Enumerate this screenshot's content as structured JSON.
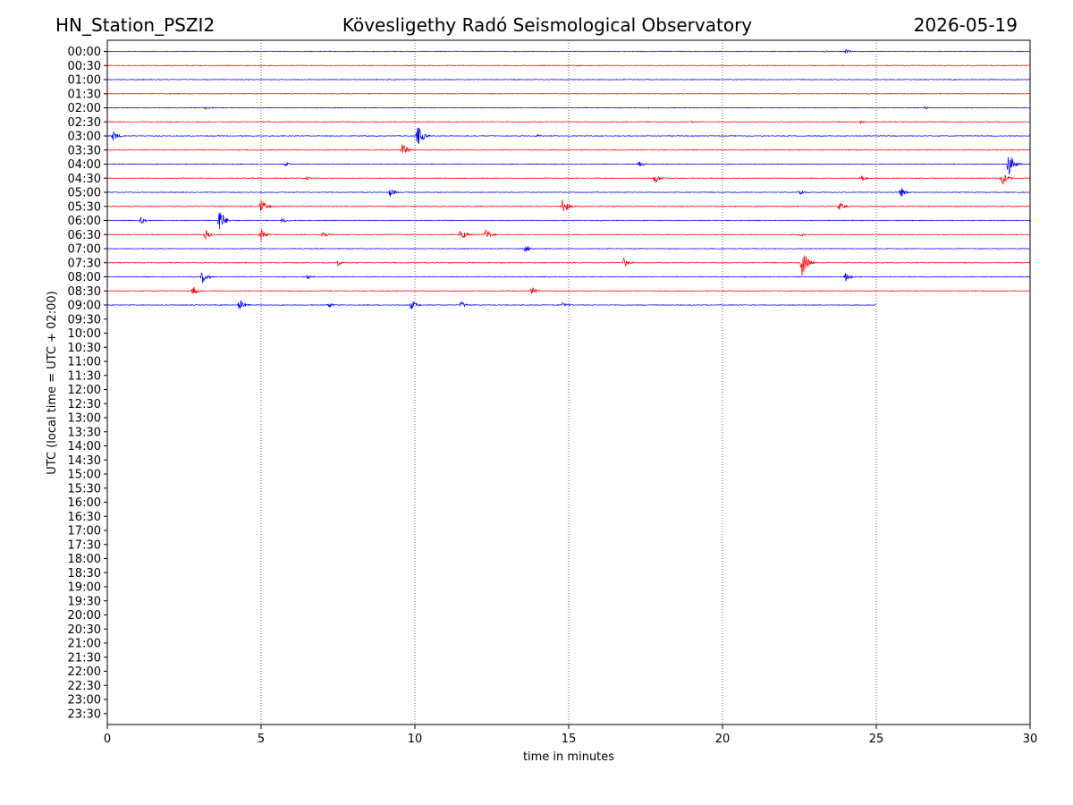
{
  "chart_data": {
    "type": "line",
    "title_left": "HN_Station_PSZI2",
    "title_center": "Kövesligethy Radó Seismological Observatory",
    "title_right": "2026-05-19",
    "xlabel": "time in minutes",
    "ylabel": "UTC (local time = UTC + 02:00)",
    "xlim": [
      0,
      30
    ],
    "x_ticks": [
      0,
      5,
      10,
      15,
      20,
      25,
      30
    ],
    "x_tick_labels": [
      "0",
      "5",
      "10",
      "15",
      "20",
      "25",
      "30"
    ],
    "vertical_gridlines": [
      5,
      10,
      15,
      20,
      25
    ],
    "row_labels": [
      "00:00",
      "00:30",
      "01:00",
      "01:30",
      "02:00",
      "02:30",
      "03:00",
      "03:30",
      "04:00",
      "04:30",
      "05:00",
      "05:30",
      "06:00",
      "06:30",
      "07:00",
      "07:30",
      "08:00",
      "08:30",
      "09:00",
      "09:30",
      "10:00",
      "10:30",
      "11:00",
      "11:30",
      "12:00",
      "12:30",
      "13:00",
      "13:30",
      "14:00",
      "14:30",
      "15:00",
      "15:30",
      "16:00",
      "16:30",
      "17:00",
      "17:30",
      "18:00",
      "18:30",
      "19:00",
      "19:30",
      "20:00",
      "20:30",
      "21:00",
      "21:30",
      "22:00",
      "22:30",
      "23:00",
      "23:30"
    ],
    "colors": {
      "even_rows": "#0000ff",
      "odd_rows": "#ff0000",
      "grid": "#000000"
    },
    "traces": [
      {
        "label": "00:00",
        "end_minute": 30,
        "events": [
          {
            "t": 24.0,
            "amp": 0.2
          },
          {
            "t": 23.3,
            "amp": 0.1
          }
        ]
      },
      {
        "label": "00:30",
        "end_minute": 30,
        "events": [
          {
            "t": 15.3,
            "amp": 0.08
          }
        ]
      },
      {
        "label": "01:00",
        "end_minute": 30,
        "events": []
      },
      {
        "label": "01:30",
        "end_minute": 30,
        "events": []
      },
      {
        "label": "02:00",
        "end_minute": 30,
        "events": [
          {
            "t": 3.2,
            "amp": 0.15
          },
          {
            "t": 26.6,
            "amp": 0.12
          }
        ]
      },
      {
        "label": "02:30",
        "end_minute": 30,
        "events": [
          {
            "t": 24.5,
            "amp": 0.15
          },
          {
            "t": 19.0,
            "amp": 0.08
          }
        ]
      },
      {
        "label": "03:00",
        "end_minute": 30,
        "events": [
          {
            "t": 0.2,
            "amp": 0.4
          },
          {
            "t": 10.1,
            "amp": 0.9
          },
          {
            "t": 14.0,
            "amp": 0.1
          }
        ]
      },
      {
        "label": "03:30",
        "end_minute": 30,
        "events": [
          {
            "t": 9.6,
            "amp": 0.55
          }
        ]
      },
      {
        "label": "04:00",
        "end_minute": 30,
        "events": [
          {
            "t": 5.8,
            "amp": 0.15
          },
          {
            "t": 17.3,
            "amp": 0.25
          },
          {
            "t": 29.3,
            "amp": 1.0
          }
        ]
      },
      {
        "label": "04:30",
        "end_minute": 30,
        "events": [
          {
            "t": 6.5,
            "amp": 0.15
          },
          {
            "t": 17.8,
            "amp": 0.45
          },
          {
            "t": 24.5,
            "amp": 0.3
          },
          {
            "t": 29.1,
            "amp": 0.6
          }
        ]
      },
      {
        "label": "05:00",
        "end_minute": 30,
        "events": [
          {
            "t": 9.2,
            "amp": 0.35
          },
          {
            "t": 22.5,
            "amp": 0.3
          },
          {
            "t": 25.8,
            "amp": 0.4
          }
        ]
      },
      {
        "label": "05:30",
        "end_minute": 30,
        "events": [
          {
            "t": 5.0,
            "amp": 0.6
          },
          {
            "t": 14.8,
            "amp": 0.7
          },
          {
            "t": 23.8,
            "amp": 0.35
          }
        ]
      },
      {
        "label": "06:00",
        "end_minute": 30,
        "events": [
          {
            "t": 1.1,
            "amp": 0.3
          },
          {
            "t": 3.65,
            "amp": 1.0
          },
          {
            "t": 5.7,
            "amp": 0.2
          }
        ]
      },
      {
        "label": "06:30",
        "end_minute": 30,
        "events": [
          {
            "t": 3.2,
            "amp": 0.4
          },
          {
            "t": 5.0,
            "amp": 0.5
          },
          {
            "t": 7.0,
            "amp": 0.35
          },
          {
            "t": 11.5,
            "amp": 0.5
          },
          {
            "t": 12.3,
            "amp": 0.45
          },
          {
            "t": 22.5,
            "amp": 0.2
          }
        ]
      },
      {
        "label": "07:00",
        "end_minute": 30,
        "events": [
          {
            "t": 13.6,
            "amp": 0.3
          }
        ]
      },
      {
        "label": "07:30",
        "end_minute": 30,
        "events": [
          {
            "t": 7.5,
            "amp": 0.25
          },
          {
            "t": 16.8,
            "amp": 0.4
          },
          {
            "t": 22.6,
            "amp": 1.2
          }
        ]
      },
      {
        "label": "08:00",
        "end_minute": 30,
        "events": [
          {
            "t": 3.1,
            "amp": 0.55
          },
          {
            "t": 6.5,
            "amp": 0.15
          },
          {
            "t": 24.0,
            "amp": 0.35
          }
        ]
      },
      {
        "label": "08:30",
        "end_minute": 30,
        "events": [
          {
            "t": 2.8,
            "amp": 0.35
          },
          {
            "t": 13.8,
            "amp": 0.3
          }
        ]
      },
      {
        "label": "09:00",
        "end_minute": 25,
        "events": [
          {
            "t": 4.3,
            "amp": 0.45
          },
          {
            "t": 7.2,
            "amp": 0.25
          },
          {
            "t": 9.9,
            "amp": 0.4
          },
          {
            "t": 11.5,
            "amp": 0.3
          },
          {
            "t": 14.8,
            "amp": 0.25
          }
        ]
      }
    ]
  }
}
